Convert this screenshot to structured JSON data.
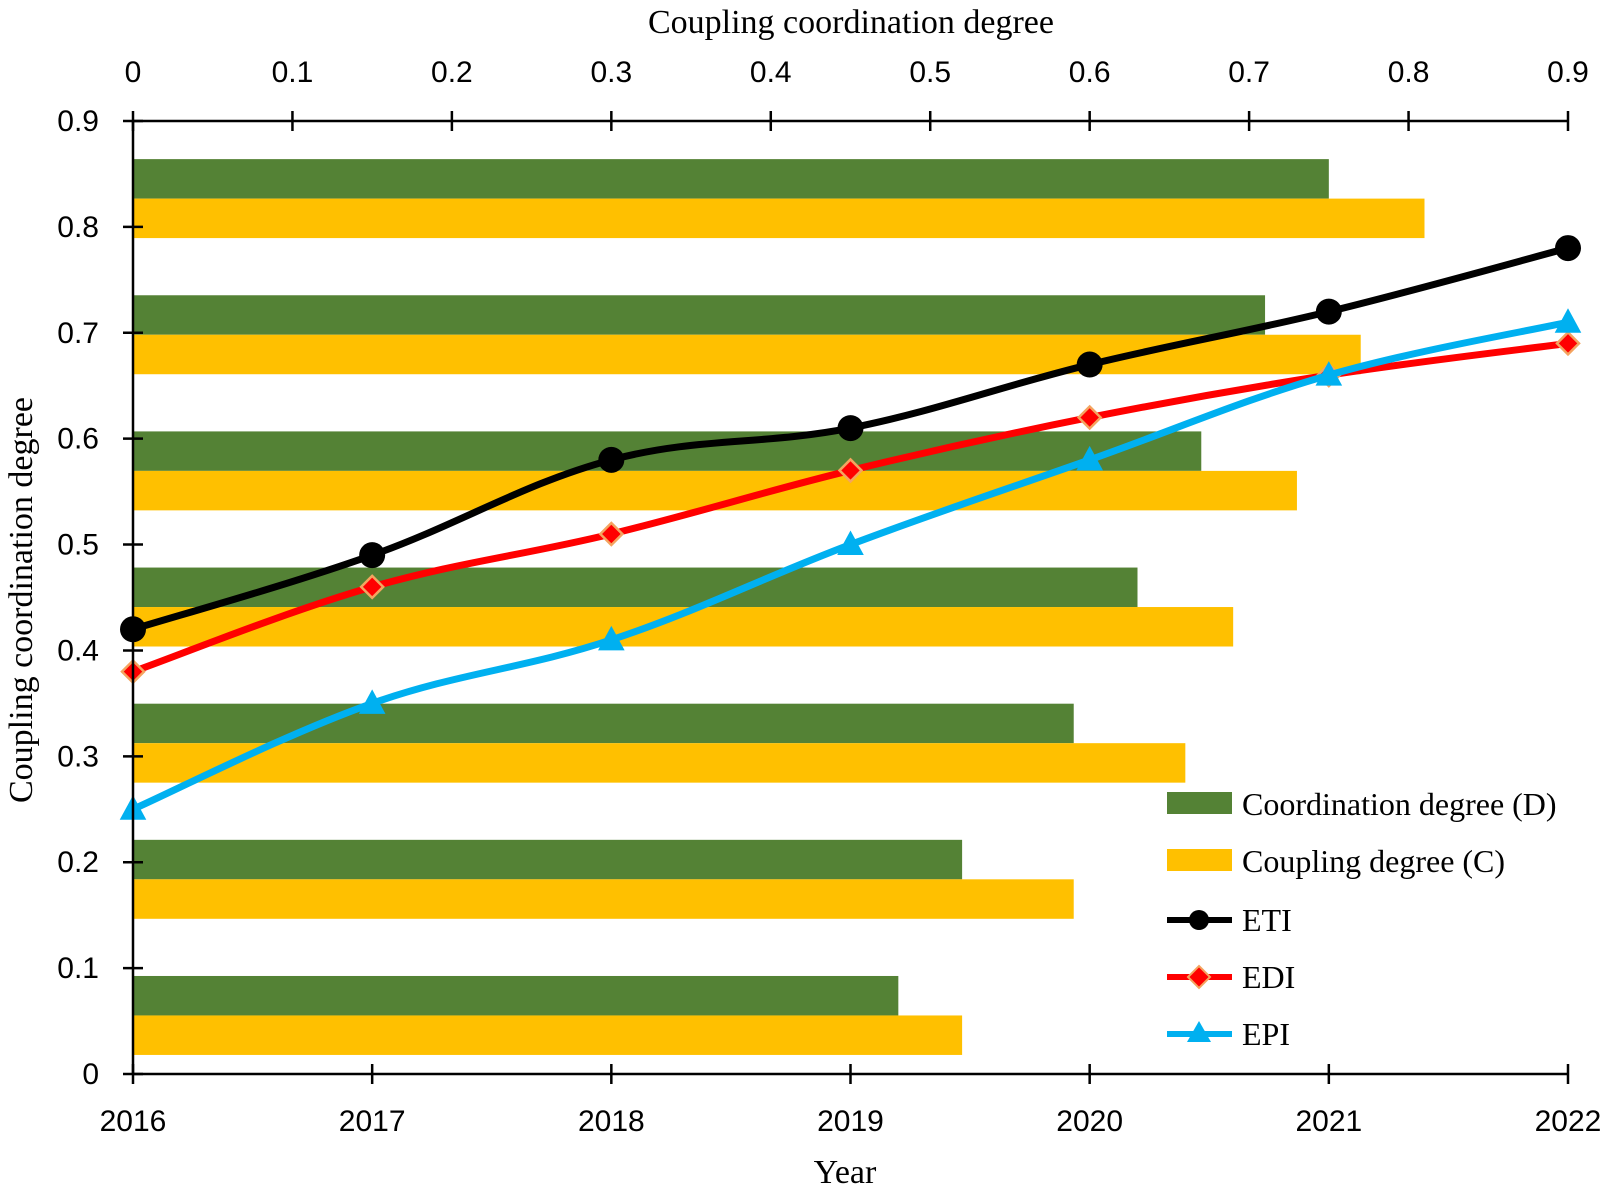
{
  "chart_data": {
    "type": "bar+line",
    "title": "",
    "top_axis": {
      "label": "Coupling coordination degree",
      "range": [
        0,
        0.9
      ],
      "ticks": [
        "0",
        "0.1",
        "0.2",
        "0.3",
        "0.4",
        "0.5",
        "0.6",
        "0.7",
        "0.8",
        "0.9"
      ]
    },
    "left_axis": {
      "label": "Coupling coordination degree",
      "range": [
        0,
        0.9
      ],
      "ticks": [
        "0",
        "0.1",
        "0.2",
        "0.3",
        "0.4",
        "0.5",
        "0.6",
        "0.7",
        "0.8",
        "0.9"
      ]
    },
    "bottom_axis": {
      "label": "Year",
      "categories": [
        "2016",
        "2017",
        "2018",
        "2019",
        "2020",
        "2021",
        "2022"
      ]
    },
    "bar_series": [
      {
        "name": "Coordination degree (D)",
        "color": "#548235",
        "values": [
          0.48,
          0.52,
          0.59,
          0.63,
          0.67,
          0.71,
          0.75
        ]
      },
      {
        "name": "Coupling degree (C)",
        "color": "#FFC000",
        "values": [
          0.52,
          0.59,
          0.66,
          0.69,
          0.73,
          0.77,
          0.81
        ]
      }
    ],
    "bar_order": "bottom group = 2016 ... top group = 2022",
    "line_series": [
      {
        "name": "ETI",
        "color": "#000000",
        "marker": "circle",
        "values": [
          0.42,
          0.49,
          0.58,
          0.61,
          0.67,
          0.72,
          0.78
        ]
      },
      {
        "name": "EDI",
        "color": "#FF0000",
        "marker": "diamond",
        "marker_color": "#FF0000",
        "marker_edge": "#F4A460",
        "values": [
          0.38,
          0.46,
          0.51,
          0.57,
          0.62,
          0.66,
          0.69
        ]
      },
      {
        "name": "EPI",
        "color": "#00B0F0",
        "marker": "triangle",
        "values": [
          0.25,
          0.35,
          0.41,
          0.5,
          0.58,
          0.66,
          0.71
        ]
      }
    ],
    "legend": {
      "position": "bottom-right",
      "items": [
        "Coordination degree (D)",
        "Coupling degree (C)",
        "ETI",
        "EDI",
        "EPI"
      ]
    }
  }
}
